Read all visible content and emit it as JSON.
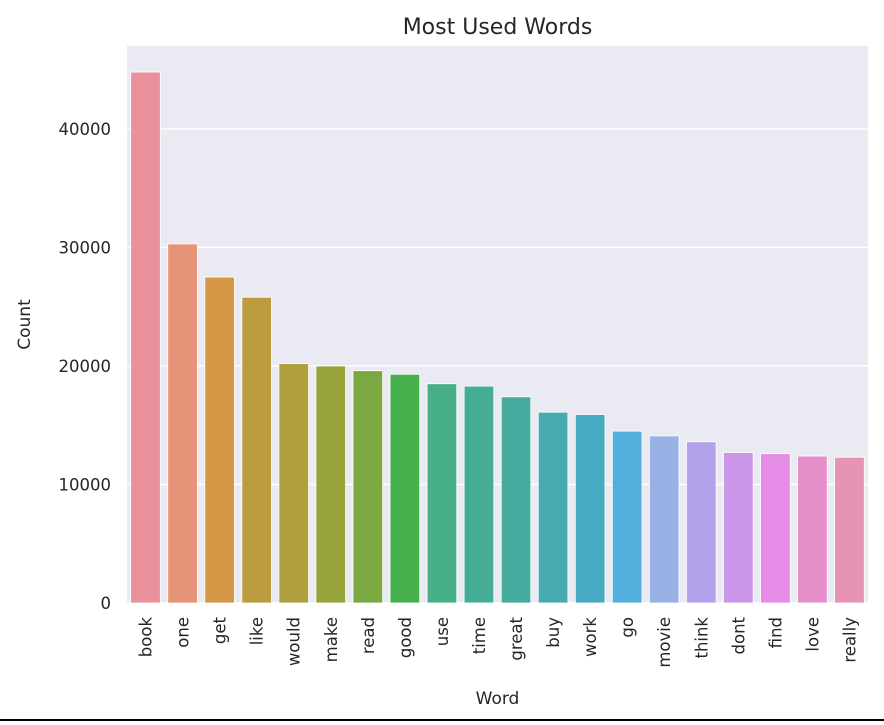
{
  "chart_data": {
    "type": "bar",
    "title": "Most Used Words",
    "xlabel": "Word",
    "ylabel": "Count",
    "categories": [
      "book",
      "one",
      "get",
      "like",
      "would",
      "make",
      "read",
      "good",
      "use",
      "time",
      "great",
      "buy",
      "work",
      "go",
      "movie",
      "think",
      "dont",
      "find",
      "love",
      "really"
    ],
    "values": [
      44800,
      30300,
      27500,
      25800,
      20200,
      20000,
      19600,
      19300,
      18500,
      18300,
      17400,
      16100,
      15900,
      14500,
      14100,
      13600,
      12700,
      12600,
      12400,
      12300
    ],
    "colors": [
      "#e8919a",
      "#e59478",
      "#d59645",
      "#bc9b3f",
      "#b0a03d",
      "#99a33c",
      "#7ca841",
      "#46b04c",
      "#47b086",
      "#45ad96",
      "#46ab9f",
      "#46aab0",
      "#47a9c2",
      "#52aedd",
      "#99b2e6",
      "#b3a2e9",
      "#cb95e8",
      "#e48ce6",
      "#e78fcb",
      "#e693b6"
    ],
    "yticks": [
      0,
      10000,
      20000,
      30000,
      40000
    ],
    "ylim": [
      0,
      47000
    ],
    "grid": true,
    "background": "#eaeaf2"
  }
}
